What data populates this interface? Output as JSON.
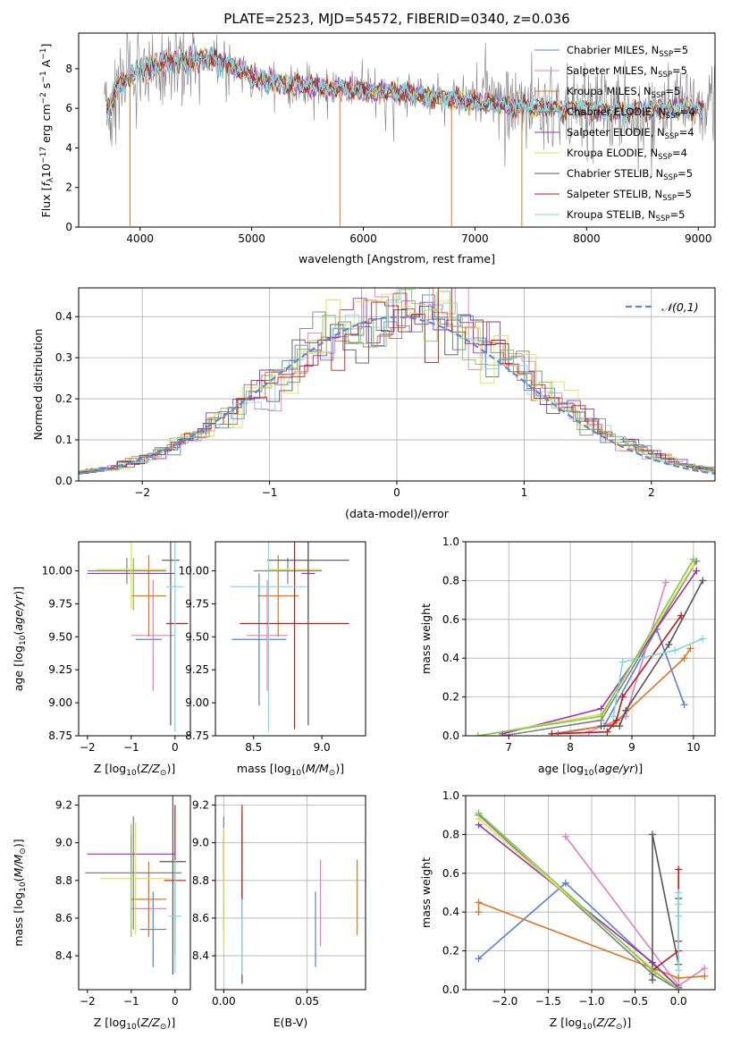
{
  "figure": {
    "title": "PLATE=2523, MJD=54572, FIBERID=0340, z=0.036"
  },
  "colors": {
    "Chabrier MILES": "#5a7fd6",
    "Salpeter MILES": "#e37fc0",
    "Kroupa MILES": "#e0751e",
    "Chabrier ELODIE": "#7f7f7f",
    "Salpeter ELODIE": "#9b2fb8",
    "Kroupa ELODIE": "#e0e04a",
    "Chabrier STELIB": "#555555",
    "Salpeter STELIB": "#c21a1a",
    "Kroupa STELIB": "#7fd9dc",
    "extra green": "#7ec850"
  },
  "chart_data": [
    {
      "id": "spectrum",
      "type": "line",
      "xlabel": "wavelength [Angstrom, rest frame]",
      "ylabel": "Flux [f_λ10^-17 erg cm^-2 s^-1 A^-1]",
      "xlim": [
        3450,
        9150
      ],
      "ylim": [
        0,
        9.8
      ],
      "xticks": [
        4000,
        5000,
        6000,
        7000,
        8000,
        9000
      ],
      "yticks": [
        0,
        2,
        4,
        6,
        8
      ],
      "grid": false,
      "legend_position": "upper right",
      "legend": [
        {
          "label": "Chabrier MILES, N",
          "sub": "SSP",
          "tail": "=5",
          "key": "Chabrier MILES"
        },
        {
          "label": "Salpeter MILES, N",
          "sub": "SSP",
          "tail": "=5",
          "key": "Salpeter MILES"
        },
        {
          "label": "Kroupa MILES, N",
          "sub": "SSP",
          "tail": "=5",
          "key": "Kroupa MILES"
        },
        {
          "label": "Chabrier ELODIE, N",
          "sub": "SSP",
          "tail": "=4",
          "key": "Chabrier ELODIE"
        },
        {
          "label": "Salpeter ELODIE, N",
          "sub": "SSP",
          "tail": "=4",
          "key": "Salpeter ELODIE"
        },
        {
          "label": "Kroupa ELODIE, N",
          "sub": "SSP",
          "tail": "=4",
          "key": "Kroupa ELODIE"
        },
        {
          "label": "Chabrier STELIB, N",
          "sub": "SSP",
          "tail": "=5",
          "key": "Chabrier STELIB"
        },
        {
          "label": "Salpeter STELIB, N",
          "sub": "SSP",
          "tail": "=5",
          "key": "Salpeter STELIB"
        },
        {
          "label": "Kroupa STELIB, N",
          "sub": "SSP",
          "tail": "=5",
          "key": "Kroupa STELIB"
        }
      ],
      "continuum_x": [
        3700,
        3800,
        3900,
        4000,
        4200,
        4400,
        4600,
        4800,
        5000,
        5200,
        5500,
        5800,
        6000,
        6300,
        6600,
        7000,
        7400,
        7800,
        8200,
        8600,
        9000
      ],
      "continuum_y": [
        6.0,
        7.1,
        7.6,
        8.0,
        8.3,
        8.4,
        8.5,
        8.2,
        7.6,
        7.3,
        7.1,
        7.0,
        6.9,
        6.8,
        6.6,
        6.3,
        6.1,
        6.0,
        5.9,
        5.9,
        6.0
      ]
    },
    {
      "id": "residuals",
      "type": "step",
      "xlabel": "(data-model)/error",
      "ylabel": "Normed distribution",
      "xlim": [
        -2.5,
        2.5
      ],
      "ylim": [
        0,
        0.47
      ],
      "xticks": [
        -2,
        -1,
        0,
        1,
        2
      ],
      "yticks": [
        0.0,
        0.1,
        0.2,
        0.3,
        0.4
      ],
      "grid": true,
      "legend": [
        {
          "label": "𝒩(0,1)",
          "style": "dashed",
          "color": "#5a8ad6"
        }
      ]
    },
    {
      "id": "age-vs-Z",
      "type": "errorbar",
      "xlabel": "Z [log10(Z/Z⊙)]",
      "ylabel": "age  [log10(age/yr)]",
      "xlim": [
        -2.2,
        0.35
      ],
      "ylim": [
        8.75,
        10.22
      ],
      "xticks": [
        -2,
        -1,
        0
      ],
      "yticks": [
        8.75,
        9.0,
        9.25,
        9.5,
        9.75,
        10.0
      ],
      "grid": false,
      "points": [
        {
          "c": "Chabrier MILES",
          "x": -0.6,
          "xe": 0.3,
          "y": 9.48,
          "ye": 0.0
        },
        {
          "c": "Salpeter MILES",
          "x": -0.5,
          "xe": 0.5,
          "y": 9.51,
          "ye": 0.42
        },
        {
          "c": "Kroupa MILES",
          "x": -0.6,
          "xe": 0.4,
          "y": 9.81,
          "ye": 0.31
        },
        {
          "c": "Chabrier ELODIE",
          "x": -1.1,
          "xe": 0.9,
          "y": 10.0,
          "ye": 0.1
        },
        {
          "c": "Salpeter ELODIE",
          "x": -1.0,
          "xe": 1.0,
          "y": 9.98,
          "ye": 0.0
        },
        {
          "c": "Kroupa ELODIE",
          "x": -1.0,
          "xe": 0.8,
          "y": 10.01,
          "ye": 0.3
        },
        {
          "c": "Chabrier STELIB",
          "x": -0.1,
          "xe": 0.2,
          "y": 10.08,
          "ye": 1.25
        },
        {
          "c": "Salpeter STELIB",
          "x": 0.05,
          "xe": 0.25,
          "y": 9.6,
          "ye": 0.0
        },
        {
          "c": "Kroupa STELIB",
          "x": 0.0,
          "xe": 0.2,
          "y": 9.88,
          "ye": 1.1
        },
        {
          "c": "extra green",
          "x": -0.95,
          "xe": 0.0,
          "y": 9.9,
          "ye": 0.2
        }
      ]
    },
    {
      "id": "age-vs-mass",
      "type": "errorbar",
      "xlabel": "mass [log10(M/M⊙)]",
      "ylabel": "",
      "xlim": [
        8.22,
        9.32
      ],
      "ylim": [
        8.75,
        10.22
      ],
      "xticks": [
        8.5,
        9.0
      ],
      "yticks": [
        8.75,
        9.0,
        9.25,
        9.5,
        9.75,
        10.0
      ],
      "grid": false,
      "points": [
        {
          "c": "Chabrier MILES",
          "x": 8.54,
          "xe": 0.2,
          "y": 9.48,
          "ye": 0.5
        },
        {
          "c": "Salpeter MILES",
          "x": 8.6,
          "xe": 0.15,
          "y": 9.51,
          "ye": 0.42
        },
        {
          "c": "Kroupa MILES",
          "x": 8.68,
          "xe": 0.15,
          "y": 9.81,
          "ye": 0.31
        },
        {
          "c": "Chabrier ELODIE",
          "x": 8.75,
          "xe": 0.25,
          "y": 10.0,
          "ye": 0.1
        },
        {
          "c": "Salpeter ELODIE",
          "x": 8.9,
          "xe": 0.05,
          "y": 9.98,
          "ye": 0.35
        },
        {
          "c": "Kroupa ELODIE",
          "x": 8.8,
          "xe": 0.2,
          "y": 10.01,
          "ye": 0.3
        },
        {
          "c": "Chabrier STELIB",
          "x": 8.9,
          "xe": 0.3,
          "y": 10.08,
          "ye": 1.25
        },
        {
          "c": "Salpeter STELIB",
          "x": 8.8,
          "xe": 0.4,
          "y": 9.6,
          "ye": 0.8
        },
        {
          "c": "Kroupa STELIB",
          "x": 8.61,
          "xe": 0.28,
          "y": 9.88,
          "ye": 1.1
        }
      ]
    },
    {
      "id": "weight-vs-age",
      "type": "line",
      "xlabel": "age  [log10(age/yr)]",
      "ylabel": "mass weight",
      "xlim": [
        6.3,
        10.35
      ],
      "ylim": [
        0,
        1.0
      ],
      "xticks": [
        7,
        8,
        9,
        10
      ],
      "yticks": [
        0.0,
        0.2,
        0.4,
        0.6,
        0.8,
        1.0
      ],
      "grid": true,
      "series": [
        {
          "c": "Chabrier MILES",
          "x": [
            7.7,
            8.55,
            9.4,
            9.85
          ],
          "y": [
            0.01,
            0.05,
            0.55,
            0.16
          ]
        },
        {
          "c": "Salpeter MILES",
          "x": [
            8.3,
            8.9,
            9.55
          ],
          "y": [
            0.02,
            0.1,
            0.79
          ]
        },
        {
          "c": "Kroupa MILES",
          "x": [
            7.8,
            8.7,
            9.85,
            9.95
          ],
          "y": [
            0.01,
            0.06,
            0.4,
            0.45
          ]
        },
        {
          "c": "Chabrier ELODIE",
          "x": [
            6.9,
            8.5,
            10.05
          ],
          "y": [
            0.0,
            0.08,
            0.9
          ]
        },
        {
          "c": "Salpeter ELODIE",
          "x": [
            6.9,
            8.5,
            10.05
          ],
          "y": [
            0.01,
            0.14,
            0.85
          ]
        },
        {
          "c": "Kroupa ELODIE",
          "x": [
            6.5,
            8.5,
            10.0
          ],
          "y": [
            0.0,
            0.11,
            0.88
          ]
        },
        {
          "c": "Chabrier STELIB",
          "x": [
            8.5,
            8.8,
            8.9,
            9.6,
            10.15
          ],
          "y": [
            0.05,
            0.05,
            0.13,
            0.47,
            0.8
          ]
        },
        {
          "c": "Salpeter STELIB",
          "x": [
            7.7,
            8.6,
            8.75,
            8.85,
            9.8
          ],
          "y": [
            0.01,
            0.02,
            0.08,
            0.2,
            0.62
          ]
        },
        {
          "c": "Kroupa STELIB",
          "x": [
            8.7,
            8.85,
            9.7,
            10.15
          ],
          "y": [
            0.1,
            0.38,
            0.44,
            0.5
          ]
        },
        {
          "c": "extra green",
          "x": [
            6.5,
            8.5,
            10.0
          ],
          "y": [
            0.0,
            0.1,
            0.91
          ]
        }
      ]
    },
    {
      "id": "mass-vs-Z",
      "type": "errorbar",
      "xlabel": "Z [log10(Z/Z⊙)]",
      "ylabel": "mass [log10(M/M⊙)]",
      "xlim": [
        -2.2,
        0.35
      ],
      "ylim": [
        8.22,
        9.25
      ],
      "xticks": [
        -2,
        -1,
        0
      ],
      "yticks": [
        8.4,
        8.6,
        8.8,
        9.0,
        9.2
      ],
      "grid": false,
      "points": [
        {
          "c": "Chabrier MILES",
          "x": -0.5,
          "xe": 0.3,
          "y": 8.54,
          "ye": 0.2
        },
        {
          "c": "Salpeter MILES",
          "x": -0.6,
          "xe": 0.4,
          "y": 8.65,
          "ye": 0.15
        },
        {
          "c": "Kroupa MILES",
          "x": -0.6,
          "xe": 0.4,
          "y": 8.7,
          "ye": 0.2
        },
        {
          "c": "Chabrier ELODIE",
          "x": -0.95,
          "xe": 1.1,
          "y": 8.84,
          "ye": 0.3
        },
        {
          "c": "Salpeter ELODIE",
          "x": -1.0,
          "xe": 1.0,
          "y": 8.94,
          "ye": 0.1
        },
        {
          "c": "Kroupa ELODIE",
          "x": -0.9,
          "xe": 0.8,
          "y": 8.81,
          "ye": 0.3
        },
        {
          "c": "Chabrier STELIB",
          "x": -0.05,
          "xe": 0.3,
          "y": 8.9,
          "ye": 0.6
        },
        {
          "c": "Salpeter STELIB",
          "x": 0.0,
          "xe": 0.25,
          "y": 8.8,
          "ye": 0.4
        },
        {
          "c": "Kroupa STELIB",
          "x": 0.0,
          "xe": 0.15,
          "y": 8.61,
          "ye": 0.3
        },
        {
          "c": "extra green",
          "x": -1.0,
          "xe": 0.0,
          "y": 8.8,
          "ye": 0.3
        }
      ]
    },
    {
      "id": "mass-vs-ebv",
      "type": "errorbar",
      "xlabel": "E(B-V)",
      "ylabel": "",
      "xlim": [
        -0.005,
        0.085
      ],
      "ylim": [
        8.22,
        9.25
      ],
      "xticks": [
        0.0,
        0.05
      ],
      "yticks": [
        8.4,
        8.6,
        8.8,
        9.0,
        9.2
      ],
      "grid": true,
      "points": [
        {
          "c": "Chabrier MILES",
          "x": 0.055,
          "xe": 0.0,
          "y": 8.54,
          "ye": 0.2
        },
        {
          "c": "Salpeter MILES",
          "x": 0.058,
          "xe": 0.0,
          "y": 8.68,
          "ye": 0.23
        },
        {
          "c": "Kroupa MILES",
          "x": 0.08,
          "xe": 0.0,
          "y": 8.71,
          "ye": 0.2
        },
        {
          "c": "Chabrier ELODIE",
          "x": 0.0,
          "xe": 0.0,
          "y": 8.84,
          "ye": 0.3
        },
        {
          "c": "Salpeter ELODIE",
          "x": 0.0,
          "xe": 0.0,
          "y": 8.94,
          "ye": 0.1
        },
        {
          "c": "Kroupa ELODIE",
          "x": 0.0,
          "xe": 0.0,
          "y": 8.76,
          "ye": 0.32
        },
        {
          "c": "Chabrier STELIB",
          "x": 0.011,
          "xe": 0.0,
          "y": 8.7,
          "ye": 0.45
        },
        {
          "c": "Salpeter STELIB",
          "x": 0.011,
          "xe": 0.0,
          "y": 8.9,
          "ye": 0.3
        },
        {
          "c": "Kroupa STELIB",
          "x": 0.011,
          "xe": 0.0,
          "y": 8.5,
          "ye": 0.2
        }
      ]
    },
    {
      "id": "weight-vs-Z",
      "type": "line",
      "xlabel": "Z [log10(Z/Z⊙)]",
      "ylabel": "mass weight",
      "xlim": [
        -2.45,
        0.42
      ],
      "ylim": [
        0,
        1.0
      ],
      "xticks": [
        -2.0,
        -1.5,
        -1.0,
        -0.5,
        0.0
      ],
      "yticks": [
        0.0,
        0.2,
        0.4,
        0.6,
        0.8,
        1.0
      ],
      "grid": true,
      "series": [
        {
          "c": "Chabrier MILES",
          "x": [
            -2.3,
            -1.3,
            0.0
          ],
          "y": [
            0.16,
            0.55,
            0.01
          ]
        },
        {
          "c": "Salpeter MILES",
          "x": [
            -1.3,
            0.0,
            0.3
          ],
          "y": [
            0.79,
            0.02,
            0.11
          ]
        },
        {
          "c": "Kroupa MILES",
          "x": [
            -2.3,
            -2.3,
            0.0,
            0.3
          ],
          "y": [
            0.4,
            0.45,
            0.06,
            0.07
          ]
        },
        {
          "c": "Chabrier ELODIE",
          "x": [
            -2.3,
            -0.3,
            0.0
          ],
          "y": [
            0.9,
            0.08,
            0.0
          ]
        },
        {
          "c": "Salpeter ELODIE",
          "x": [
            -2.3,
            -0.3,
            0.0
          ],
          "y": [
            0.85,
            0.14,
            0.01
          ]
        },
        {
          "c": "Kroupa ELODIE",
          "x": [
            -2.3,
            -0.3,
            0.0
          ],
          "y": [
            0.88,
            0.11,
            0.0
          ]
        },
        {
          "c": "Chabrier STELIB",
          "x": [
            -0.3,
            -0.3,
            0.0,
            0.0
          ],
          "y": [
            0.05,
            0.8,
            0.13,
            0.47
          ]
        },
        {
          "c": "Salpeter STELIB",
          "x": [
            -0.3,
            0.0,
            0.0,
            0.0
          ],
          "y": [
            0.1,
            0.2,
            0.25,
            0.62
          ]
        },
        {
          "c": "Kroupa STELIB",
          "x": [
            0.0,
            0.0,
            0.0,
            0.0
          ],
          "y": [
            0.1,
            0.38,
            0.44,
            0.5
          ]
        },
        {
          "c": "extra green",
          "x": [
            -2.3,
            -0.3,
            0.0
          ],
          "y": [
            0.91,
            0.1,
            0.0
          ]
        }
      ]
    }
  ]
}
